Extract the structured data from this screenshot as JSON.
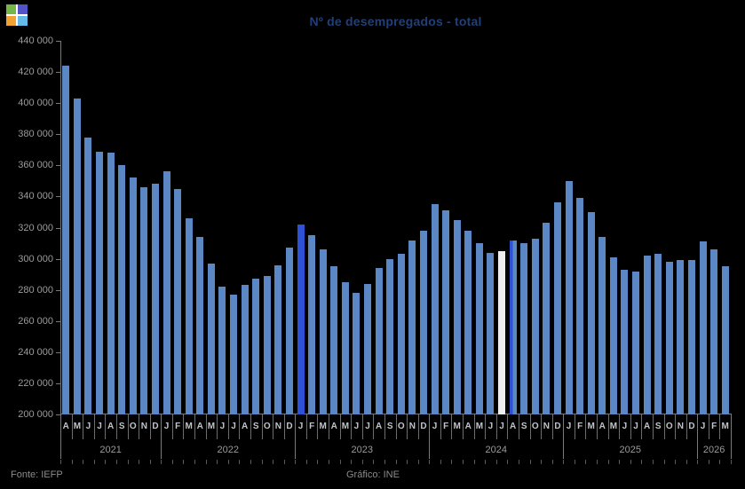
{
  "logo": {
    "name": "four-square-logo",
    "colors": {
      "top_left": "#74b648",
      "top_right": "#5252c9",
      "bottom_left": "#f0a233",
      "bottom_right": "#64b9e9"
    }
  },
  "footer": {
    "source": "Fonte: IEFP",
    "credit": "Gráfico: INE"
  },
  "chart_data": {
    "type": "bar",
    "title": "Nº de desempregados - total",
    "xlabel": "",
    "ylabel": "",
    "ylim": [
      200000,
      440000
    ],
    "ytick_interval": 20000,
    "ytick_labels": [
      "440 000",
      "420 000",
      "400 000",
      "380 000",
      "360 000",
      "340 000",
      "320 000",
      "300 000",
      "280 000",
      "260 000",
      "240 000",
      "220 000",
      "200 000"
    ],
    "grid": false,
    "legend_position": "none",
    "background_color": "#000000",
    "bar_color": "#5b87c5",
    "highlight_colors": {
      "royal": "#2e52d6",
      "white": "#ededed",
      "royal_left": "#2e52d6"
    },
    "years": [
      {
        "year": "2021",
        "months": [
          "A",
          "M",
          "J",
          "J",
          "A",
          "S",
          "O",
          "N",
          "D"
        ],
        "values": [
          424000,
          403000,
          378000,
          369000,
          368000,
          360000,
          352000,
          346000,
          348000
        ]
      },
      {
        "year": "2022",
        "months": [
          "J",
          "F",
          "M",
          "A",
          "M",
          "J",
          "J",
          "A",
          "S",
          "O",
          "N",
          "D"
        ],
        "values": [
          356000,
          345000,
          326000,
          314000,
          297000,
          282000,
          277000,
          283000,
          287000,
          289000,
          296000,
          307000
        ]
      },
      {
        "year": "2023",
        "months": [
          "J",
          "F",
          "M",
          "A",
          "M",
          "J",
          "J",
          "A",
          "S",
          "O",
          "N",
          "D"
        ],
        "values": [
          322000,
          315000,
          306000,
          295000,
          285000,
          278000,
          284000,
          294000,
          300000,
          303000,
          312000,
          318000
        ]
      },
      {
        "year": "2024",
        "months": [
          "J",
          "F",
          "M",
          "A",
          "M",
          "J",
          "J",
          "A",
          "S",
          "O",
          "N",
          "D"
        ],
        "values": [
          335000,
          331000,
          325000,
          318000,
          310000,
          304000,
          305000,
          312000,
          310000,
          313000,
          323000,
          336000
        ]
      },
      {
        "year": "2025",
        "months": [
          "J",
          "F",
          "M",
          "A",
          "M",
          "J",
          "J",
          "A",
          "S",
          "O",
          "N",
          "D"
        ],
        "values": [
          350000,
          339000,
          330000,
          314000,
          301000,
          293000,
          292000,
          302000,
          303000,
          298000,
          299000,
          299000
        ]
      },
      {
        "year": "2026",
        "months": [
          "J",
          "F",
          "M"
        ],
        "values": [
          311000,
          306000,
          295000
        ]
      }
    ],
    "highlighted_bars": [
      {
        "year": "2023",
        "month_index": 0,
        "style": "royal"
      },
      {
        "year": "2024",
        "month_index": 6,
        "style": "white"
      },
      {
        "year": "2024",
        "month_index": 7,
        "style": "royal_left"
      }
    ]
  }
}
